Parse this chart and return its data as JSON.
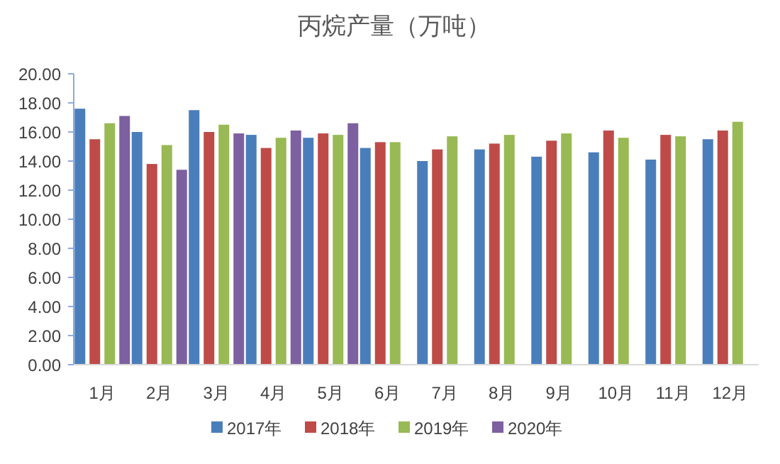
{
  "chart_data": {
    "type": "bar",
    "title": "丙烷产量（万吨）",
    "categories": [
      "1月",
      "2月",
      "3月",
      "4月",
      "5月",
      "6月",
      "7月",
      "8月",
      "9月",
      "10月",
      "11月",
      "12月"
    ],
    "series": [
      {
        "name": "2017年",
        "color": "#4a7ebb",
        "values": [
          17.6,
          16.0,
          17.5,
          15.8,
          15.6,
          14.9,
          14.0,
          14.8,
          14.3,
          14.6,
          14.1,
          15.5
        ]
      },
      {
        "name": "2018年",
        "color": "#be4b48",
        "values": [
          15.5,
          13.8,
          16.0,
          14.9,
          15.9,
          15.3,
          14.8,
          15.2,
          15.4,
          16.1,
          15.8,
          16.1
        ]
      },
      {
        "name": "2019年",
        "color": "#98b954",
        "values": [
          16.6,
          15.1,
          16.5,
          15.6,
          15.8,
          15.3,
          15.7,
          15.8,
          15.9,
          15.6,
          15.7,
          16.7
        ]
      },
      {
        "name": "2020年",
        "color": "#7d60a0",
        "values": [
          17.1,
          13.4,
          15.9,
          16.1,
          16.6,
          null,
          null,
          null,
          null,
          null,
          null,
          null
        ]
      }
    ],
    "ylim": [
      0,
      20
    ],
    "yticks": [
      {
        "value": 0,
        "label": "0.00"
      },
      {
        "value": 2,
        "label": "2.00"
      },
      {
        "value": 4,
        "label": "4.00"
      },
      {
        "value": 6,
        "label": "6.00"
      },
      {
        "value": 8,
        "label": "8.00"
      },
      {
        "value": 10,
        "label": "10.00"
      },
      {
        "value": 12,
        "label": "12.00"
      },
      {
        "value": 14,
        "label": "14.00"
      },
      {
        "value": 16,
        "label": "16.00"
      },
      {
        "value": 18,
        "label": "18.00"
      },
      {
        "value": 20,
        "label": "20.00"
      }
    ],
    "grid": false,
    "legend": "bottom"
  }
}
